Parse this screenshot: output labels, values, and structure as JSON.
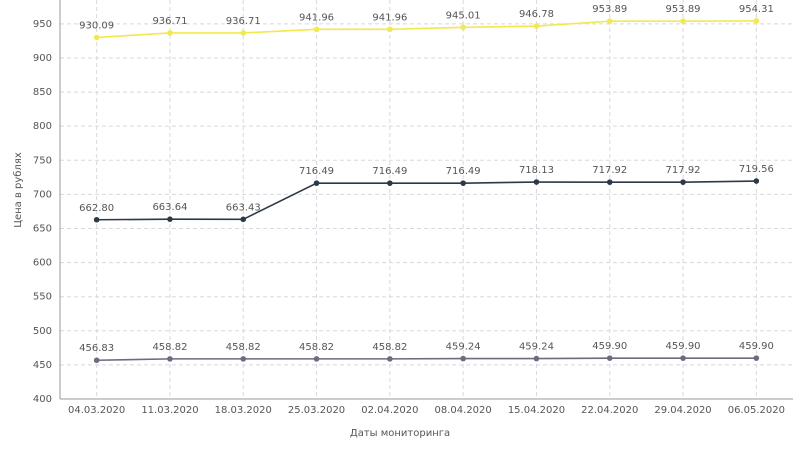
{
  "chart_data": {
    "type": "line",
    "x_label": "Даты мониторинга",
    "y_label": "Цена в рублях",
    "categories": [
      "04.03.2020",
      "11.03.2020",
      "18.03.2020",
      "25.03.2020",
      "02.04.2020",
      "08.04.2020",
      "15.04.2020",
      "22.04.2020",
      "29.04.2020",
      "06.05.2020"
    ],
    "series": [
      {
        "color": "#f2e94e",
        "values": [
          930.09,
          936.71,
          936.71,
          941.96,
          941.96,
          945.01,
          946.78,
          953.89,
          953.89,
          954.31
        ],
        "value_labels": [
          "930.09",
          "936.71",
          "936.71",
          "941.96",
          "941.96",
          "945.01",
          "946.78",
          "953.89",
          "953.89",
          "954.31"
        ]
      },
      {
        "color": "#2b3a4a",
        "values": [
          662.8,
          663.64,
          663.43,
          716.49,
          716.49,
          716.49,
          718.13,
          717.92,
          717.92,
          719.56
        ],
        "value_labels": [
          "662.80",
          "663.64",
          "663.43",
          "716.49",
          "716.49",
          "716.49",
          "718.13",
          "717.92",
          "717.92",
          "719.56"
        ]
      },
      {
        "color": "#6f6a80",
        "values": [
          456.83,
          458.82,
          458.82,
          458.82,
          458.82,
          459.24,
          459.24,
          459.9,
          459.9,
          459.9
        ],
        "value_labels": [
          "456.83",
          "458.82",
          "458.82",
          "458.82",
          "458.82",
          "459.24",
          "459.24",
          "459.90",
          "459.90",
          "459.90"
        ]
      }
    ],
    "ylim": [
      400,
      985
    ],
    "yticks": [
      400,
      450,
      500,
      550,
      600,
      650,
      700,
      750,
      800,
      850,
      900,
      950
    ],
    "grid": true
  }
}
